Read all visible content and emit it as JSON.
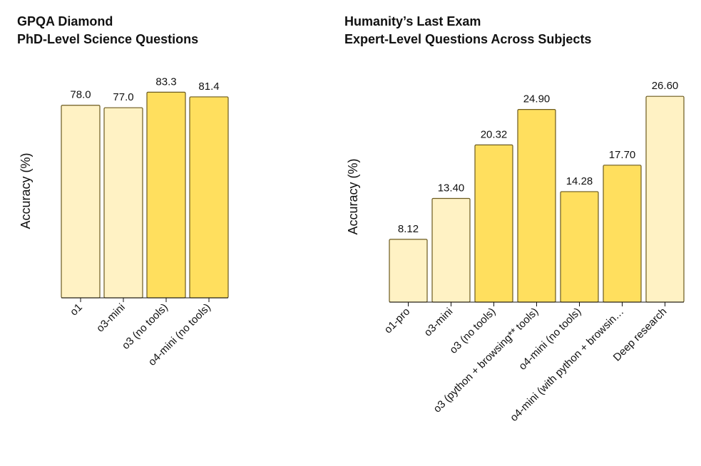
{
  "chart_data": [
    {
      "type": "bar",
      "title": "GPQA Diamond",
      "subtitle": "PhD-Level Science Questions",
      "ylabel": "Accuracy (%)",
      "xlabel": "",
      "ylim": [
        0,
        86
      ],
      "categories": [
        "o1",
        "o3-mini",
        "o3 (no tools)",
        "o4-mini (no tools)"
      ],
      "values": [
        78.0,
        77.0,
        83.3,
        81.4
      ],
      "value_labels": [
        "78.0",
        "77.0",
        "83.3",
        "81.4"
      ],
      "bar_colors": [
        "#fff2c4",
        "#fff2c4",
        "#ffdf5e",
        "#ffdf5e"
      ]
    },
    {
      "type": "bar",
      "title": "Humanity’s Last Exam",
      "subtitle": "Expert-Level Questions Across Subjects",
      "ylabel": "Accuracy (%)",
      "xlabel": "",
      "ylim": [
        0,
        28
      ],
      "categories": [
        "o1-pro",
        "o3-mini",
        "o3 (no tools)",
        "o3 (python + browsing** tools)",
        "o4-mini (no tools)",
        "o4-mini (with python + browsin…",
        "Deep research"
      ],
      "values": [
        8.12,
        13.4,
        20.32,
        24.9,
        14.28,
        17.7,
        26.6
      ],
      "value_labels": [
        "8.12",
        "13.40",
        "20.32",
        "24.90",
        "14.28",
        "17.70",
        "26.60"
      ],
      "bar_colors": [
        "#fff2c4",
        "#fff2c4",
        "#ffdf5e",
        "#ffdf5e",
        "#ffdf5e",
        "#ffdf5e",
        "#fff2c4"
      ]
    }
  ],
  "colors": {
    "bar_stroke": "#6b5a1e",
    "axis": "#111111",
    "light_bar": "#fff2c4",
    "bright_bar": "#ffdf5e"
  }
}
